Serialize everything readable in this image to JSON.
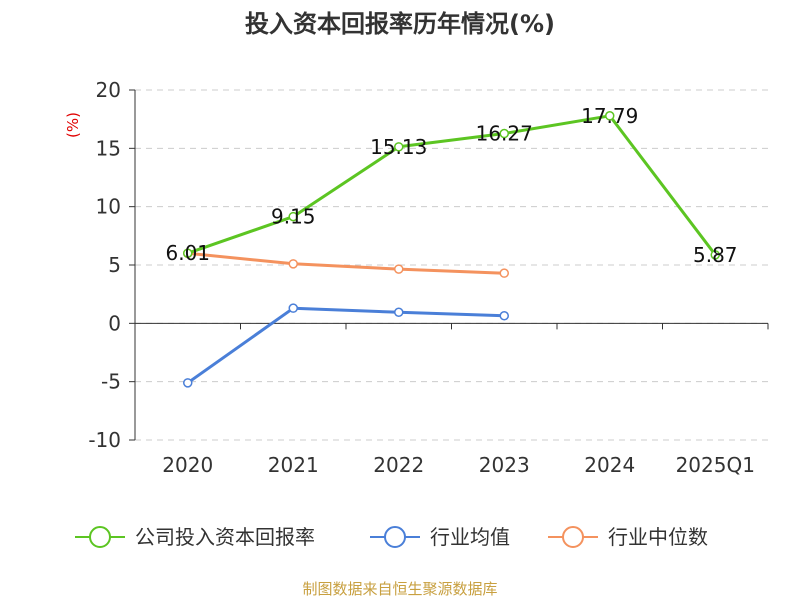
{
  "chart_data": {
    "type": "line",
    "title": "投入资本回报率历年情况(%)",
    "ylabel": "(%)",
    "xlabel": "",
    "categories": [
      "2020",
      "2021",
      "2022",
      "2023",
      "2024",
      "2025Q1"
    ],
    "ylim": [
      -10,
      20
    ],
    "yticks": [
      20,
      15,
      10,
      5,
      0,
      -5,
      -10
    ],
    "grid": true,
    "legend_position": "bottom",
    "series": [
      {
        "name": "公司投入资本回报率",
        "color": "#5cc522",
        "values": [
          6.01,
          9.15,
          15.13,
          16.27,
          17.79,
          5.87
        ],
        "labels": [
          "6.01",
          "9.15",
          "15.13",
          "16.27",
          "17.79",
          "5.87"
        ]
      },
      {
        "name": "行业均值",
        "color": "#4a7fd8",
        "values": [
          -5.1,
          1.3,
          0.95,
          0.65,
          null,
          null
        ]
      },
      {
        "name": "行业中位数",
        "color": "#f4925e",
        "values": [
          6.0,
          5.1,
          4.65,
          4.3,
          null,
          null
        ]
      }
    ],
    "source": "制图数据来自恒生聚源数据库"
  }
}
